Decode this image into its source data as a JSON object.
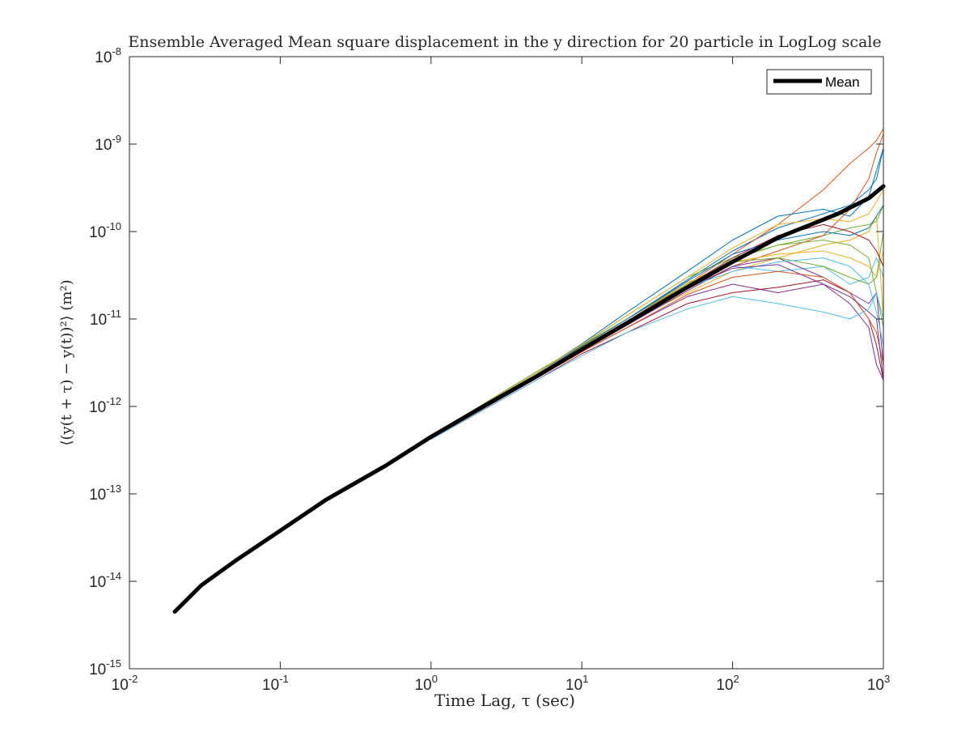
{
  "chart_data": {
    "type": "line",
    "title": "Ensemble Averaged Mean square displacement in the y direction for 20 particle in LogLog scale",
    "xlabel": "Time Lag, τ (sec)",
    "ylabel": "⟨(y(t + τ) − y(t))²⟩ (m²)",
    "xscale": "log",
    "yscale": "log",
    "xlim": [
      0.01,
      1000
    ],
    "ylim": [
      1e-15,
      1e-08
    ],
    "grid": false,
    "x_ticks": [
      {
        "value": 0.01,
        "base": "10",
        "exp": "-2"
      },
      {
        "value": 0.1,
        "base": "10",
        "exp": "-1"
      },
      {
        "value": 1,
        "base": "10",
        "exp": "0"
      },
      {
        "value": 10,
        "base": "10",
        "exp": "1"
      },
      {
        "value": 100,
        "base": "10",
        "exp": "2"
      },
      {
        "value": 1000,
        "base": "10",
        "exp": "3"
      }
    ],
    "y_ticks": [
      {
        "value": 1e-15,
        "base": "10",
        "exp": "-15"
      },
      {
        "value": 1e-14,
        "base": "10",
        "exp": "-14"
      },
      {
        "value": 1e-13,
        "base": "10",
        "exp": "-13"
      },
      {
        "value": 1e-12,
        "base": "10",
        "exp": "-12"
      },
      {
        "value": 1e-11,
        "base": "10",
        "exp": "-11"
      },
      {
        "value": 1e-10,
        "base": "10",
        "exp": "-10"
      },
      {
        "value": 1e-09,
        "base": "10",
        "exp": "-9"
      },
      {
        "value": 1e-08,
        "base": "10",
        "exp": "-8"
      }
    ],
    "legend": {
      "position": "top-right",
      "entries": [
        "Mean"
      ]
    },
    "mean_series": {
      "name": "Mean",
      "color": "#000000",
      "x": [
        0.02,
        0.03,
        0.05,
        0.1,
        0.2,
        0.5,
        1,
        2,
        5,
        10,
        20,
        50,
        100,
        200,
        500,
        800,
        1000
      ],
      "y": [
        4.5e-15,
        9e-15,
        1.7e-14,
        3.8e-14,
        8.5e-14,
        2.1e-13,
        4.5e-13,
        9e-13,
        2.2e-12,
        4.5e-12,
        9e-12,
        2.3e-11,
        4.5e-11,
        8.5e-11,
        1.6e-10,
        2.4e-10,
        3.3e-10
      ]
    },
    "particle_series": {
      "count": 20,
      "colors": [
        "#0072BD",
        "#D95319",
        "#EDB120",
        "#7E2F8E",
        "#77AC30",
        "#4DBEEE",
        "#A2142F"
      ],
      "x": [
        1,
        5,
        10,
        20,
        50,
        100,
        200,
        400,
        600,
        800,
        900,
        1000
      ],
      "y": [
        [
          4.6e-13,
          2.3e-12,
          4.8e-12,
          1e-11,
          2.8e-11,
          6e-11,
          1.1e-10,
          1.6e-10,
          2e-10,
          3e-10,
          4e-10,
          9e-10
        ],
        [
          4.4e-13,
          2.2e-12,
          4.6e-12,
          9.5e-12,
          2.5e-11,
          5.5e-11,
          1.2e-10,
          3e-10,
          6e-10,
          9e-10,
          1.1e-09,
          1.5e-09
        ],
        [
          4.5e-13,
          2.3e-12,
          4.7e-12,
          9e-12,
          2e-11,
          3.5e-11,
          5e-11,
          7e-11,
          8e-11,
          1e-10,
          1.5e-10,
          1e-11
        ],
        [
          4.3e-13,
          2.1e-12,
          4.2e-12,
          8e-12,
          1.8e-11,
          2.5e-11,
          2e-11,
          2.5e-11,
          1.5e-11,
          8e-12,
          3e-12,
          2e-12
        ],
        [
          4.5e-13,
          2.4e-12,
          5e-12,
          1.1e-11,
          3e-11,
          5e-11,
          7e-11,
          9e-11,
          1.1e-10,
          1.2e-10,
          1.3e-10,
          2e-10
        ],
        [
          4.4e-13,
          2.2e-12,
          4.5e-12,
          9e-12,
          2.2e-11,
          4e-11,
          3.5e-11,
          4e-11,
          2.5e-11,
          3e-11,
          5e-11,
          3e-11
        ],
        [
          4.2e-13,
          2e-12,
          4e-12,
          7e-12,
          1.5e-11,
          2e-11,
          2.3e-11,
          2.8e-11,
          2e-11,
          1e-11,
          5e-12,
          2e-12
        ],
        [
          4.6e-13,
          2.4e-12,
          5.2e-12,
          1.2e-11,
          3.5e-11,
          8e-11,
          1.5e-10,
          1.8e-10,
          1.5e-10,
          2.5e-10,
          5e-10,
          9e-10
        ],
        [
          4.5e-13,
          2.3e-12,
          4.6e-12,
          9e-12,
          2.2e-11,
          4e-11,
          6e-11,
          9e-11,
          1.8e-10,
          4e-10,
          8e-10,
          1.3e-09
        ],
        [
          4.4e-13,
          2.3e-12,
          4.8e-12,
          1e-11,
          2.6e-11,
          4.5e-11,
          5.5e-11,
          6e-11,
          5e-11,
          4e-11,
          3e-11,
          6e-11
        ],
        [
          4.3e-13,
          2.1e-12,
          4.3e-12,
          8.5e-12,
          2.1e-11,
          4e-11,
          5e-11,
          3e-11,
          2e-11,
          1.5e-11,
          2e-11,
          3e-12
        ],
        [
          4.6e-13,
          2.5e-12,
          5e-12,
          1e-11,
          2.5e-11,
          4.5e-11,
          5e-11,
          4e-11,
          3e-11,
          2.5e-11,
          3e-11,
          1e-10
        ],
        [
          4.4e-13,
          2.2e-12,
          4.4e-12,
          8.8e-12,
          2.3e-11,
          3.5e-11,
          4.5e-11,
          5e-11,
          4e-11,
          2.5e-11,
          1.2e-11,
          5e-12
        ],
        [
          4.5e-13,
          2.3e-12,
          4.7e-12,
          9.5e-12,
          2.4e-11,
          5e-11,
          9e-11,
          1.2e-10,
          1e-10,
          8e-11,
          6e-11,
          4e-11
        ],
        [
          4.5e-13,
          2.4e-12,
          4.9e-12,
          1e-11,
          2.7e-11,
          5.5e-11,
          8e-11,
          1e-10,
          9e-11,
          1.1e-10,
          1.5e-10,
          2e-10
        ],
        [
          4.3e-13,
          2.1e-12,
          4.2e-12,
          8e-12,
          1.9e-11,
          3e-11,
          3.5e-11,
          3e-11,
          2e-11,
          1e-11,
          7e-12,
          3e-12
        ],
        [
          4.6e-13,
          2.4e-12,
          5.1e-12,
          1.1e-11,
          3e-11,
          6.5e-11,
          1.2e-10,
          1.4e-10,
          1.3e-10,
          1.6e-10,
          2.2e-10,
          3e-10
        ],
        [
          4.4e-13,
          2.2e-12,
          4.5e-12,
          9e-12,
          2.3e-11,
          3.8e-11,
          4.2e-11,
          2.5e-11,
          1.8e-11,
          1.2e-11,
          1e-11,
          2e-12
        ],
        [
          4.5e-13,
          2.3e-12,
          4.6e-12,
          9.3e-12,
          2.4e-11,
          4.8e-11,
          7e-11,
          8e-11,
          7e-11,
          5e-11,
          2e-11,
          8e-12
        ],
        [
          4.2e-13,
          2e-12,
          3.8e-12,
          7e-12,
          1.3e-11,
          1.8e-11,
          1.5e-11,
          1.2e-11,
          1e-11,
          1.3e-11,
          2e-11,
          1e-11
        ]
      ]
    }
  }
}
